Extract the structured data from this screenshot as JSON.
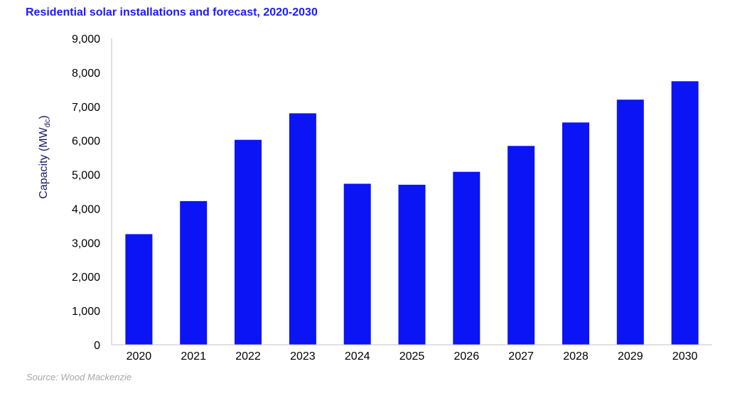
{
  "title": "Residential solar installations and forecast, 2020-2030",
  "source": "Source: Wood Mackenzie",
  "colors": {
    "bar": "#0a14f5",
    "title": "#1a1aff",
    "axis": "#c0c0c0"
  },
  "chart_data": {
    "type": "bar",
    "title": "Residential solar installations and forecast, 2020-2030",
    "xlabel": "",
    "ylabel": "Capacity (MWdc)",
    "ylabel_main": "Capacity (MW",
    "ylabel_sub": "dc",
    "ylabel_close": ")",
    "categories": [
      "2020",
      "2021",
      "2022",
      "2023",
      "2024",
      "2025",
      "2026",
      "2027",
      "2028",
      "2029",
      "2030"
    ],
    "values": [
      3250,
      4220,
      6020,
      6800,
      4730,
      4700,
      5080,
      5840,
      6530,
      7200,
      7740
    ],
    "ylim": [
      0,
      9000
    ],
    "yticks": [
      "0",
      "1,000",
      "2,000",
      "3,000",
      "4,000",
      "5,000",
      "6,000",
      "7,000",
      "8,000",
      "9,000"
    ],
    "ytick_values": [
      0,
      1000,
      2000,
      3000,
      4000,
      5000,
      6000,
      7000,
      8000,
      9000
    ],
    "grid": false,
    "legend": "none"
  }
}
